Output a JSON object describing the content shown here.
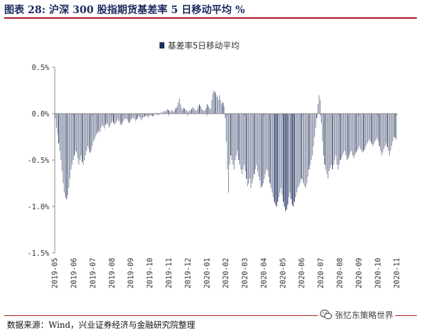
{
  "title": "图表 28:  沪深 300 股指期货基差率 5 日移动平均  %",
  "source": "数据来源：Wind，兴业证券经济与金融研究院整理",
  "watermark": "张忆东策略世界",
  "colors": {
    "bar": "#7d869c",
    "bar_dark": "#1c2d5e",
    "title": "#1a2a5e",
    "rule": "#a8141c"
  },
  "chart_data": {
    "type": "bar",
    "legend_position": "top-center",
    "grid": false,
    "ylim": [
      -1.5,
      0.5
    ],
    "yticks": [
      0.5,
      0.0,
      -0.5,
      -1.0,
      -1.5
    ],
    "ytick_labels": [
      "0.5%",
      "0.0%",
      "-0.5%",
      "-1.0%",
      "-1.5%"
    ],
    "xtick_labels": [
      "2019-05",
      "2019-06",
      "2019-07",
      "2019-08",
      "2019-09",
      "2019-10",
      "2019-11",
      "2019-12",
      "2020-01",
      "2020-02",
      "2020-03",
      "2020-04",
      "2020-05",
      "2020-06",
      "2020-07",
      "2020-08",
      "2020-09",
      "2020-10",
      "2020-11"
    ],
    "series": [
      {
        "name": "基差率5日移动平均",
        "color": "#7d869c",
        "values": [
          -0.05,
          -0.15,
          -0.22,
          -0.32,
          -0.4,
          -0.5,
          -0.62,
          -0.75,
          -0.85,
          -0.9,
          -0.92,
          -0.88,
          -0.8,
          -0.7,
          -0.6,
          -0.55,
          -0.5,
          -0.45,
          -0.4,
          -0.42,
          -0.48,
          -0.55,
          -0.5,
          -0.45,
          -0.52,
          -0.55,
          -0.5,
          -0.45,
          -0.4,
          -0.35,
          -0.38,
          -0.42,
          -0.4,
          -0.35,
          -0.3,
          -0.28,
          -0.25,
          -0.22,
          -0.2,
          -0.18,
          -0.2,
          -0.15,
          -0.12,
          -0.14,
          -0.16,
          -0.12,
          -0.1,
          -0.12,
          -0.15,
          -0.13,
          -0.1,
          -0.08,
          -0.1,
          -0.12,
          -0.1,
          -0.08,
          -0.06,
          -0.08,
          -0.1,
          -0.12,
          -0.1,
          -0.08,
          -0.06,
          -0.05,
          -0.06,
          -0.08,
          -0.1,
          -0.08,
          -0.06,
          -0.05,
          -0.04,
          -0.06,
          -0.08,
          -0.06,
          -0.04,
          -0.03,
          -0.05,
          -0.07,
          -0.05,
          -0.04,
          -0.03,
          -0.02,
          -0.03,
          -0.04,
          -0.02,
          -0.01,
          -0.02,
          -0.03,
          -0.02,
          -0.01,
          0.01,
          -0.01,
          -0.02,
          -0.01,
          0.0,
          0.02,
          0.01,
          0.03,
          0.02,
          0.03,
          0.05,
          0.04,
          0.03,
          0.02,
          0.04,
          0.03,
          0.02,
          0.04,
          0.06,
          0.08,
          0.12,
          0.16,
          0.1,
          0.06,
          0.04,
          0.06,
          0.05,
          0.04,
          0.03,
          0.02,
          0.04,
          0.03,
          0.05,
          0.07,
          0.06,
          0.04,
          0.03,
          0.05,
          0.08,
          0.1,
          0.08,
          0.05,
          0.04,
          0.03,
          0.04,
          0.06,
          0.1,
          0.08,
          0.06,
          0.05,
          0.15,
          0.22,
          0.25,
          0.23,
          0.2,
          0.18,
          0.15,
          0.2,
          0.14,
          0.1,
          0.12,
          0.08,
          -0.05,
          -0.3,
          -0.6,
          -0.85,
          -0.55,
          -0.45,
          -0.5,
          -0.55,
          -0.6,
          -0.5,
          -0.45,
          -0.4,
          -0.5,
          -0.55,
          -0.6,
          -0.65,
          -0.6,
          -0.55,
          -0.62,
          -0.7,
          -0.78,
          -0.75,
          -0.7,
          -0.8,
          -0.75,
          -0.7,
          -0.65,
          -0.6,
          -0.55,
          -0.62,
          -0.68,
          -0.72,
          -0.8,
          -0.78,
          -0.75,
          -0.7,
          -0.65,
          -0.6,
          -0.62,
          -0.68,
          -0.75,
          -0.8,
          -0.85,
          -0.9,
          -0.95,
          -0.98,
          -1.0,
          -0.95,
          -0.9,
          -0.85,
          -0.8,
          -0.88,
          -0.95,
          -1.0,
          -1.05,
          -1.03,
          -0.98,
          -0.9,
          -0.85,
          -0.92,
          -0.98,
          -1.0,
          -0.95,
          -0.9,
          -0.85,
          -0.8,
          -0.78,
          -0.75,
          -0.7,
          -0.72,
          -0.75,
          -0.78,
          -0.8,
          -0.75,
          -0.68,
          -0.6,
          -0.55,
          -0.5,
          -0.45,
          -0.35,
          -0.25,
          -0.15,
          -0.05,
          0.1,
          0.2,
          0.15,
          -0.1,
          -0.3,
          -0.45,
          -0.55,
          -0.6,
          -0.65,
          -0.7,
          -0.62,
          -0.58,
          -0.55,
          -0.6,
          -0.55,
          -0.5,
          -0.45,
          -0.55,
          -0.6,
          -0.55,
          -0.5,
          -0.48,
          -0.45,
          -0.42,
          -0.4,
          -0.45,
          -0.5,
          -0.48,
          -0.45,
          -0.42,
          -0.4,
          -0.45,
          -0.48,
          -0.45,
          -0.42,
          -0.4,
          -0.38,
          -0.35,
          -0.38,
          -0.4,
          -0.42,
          -0.4,
          -0.38,
          -0.35,
          -0.32,
          -0.3,
          -0.28,
          -0.3,
          -0.32,
          -0.35,
          -0.33,
          -0.3,
          -0.28,
          -0.26,
          -0.3,
          -0.35,
          -0.4,
          -0.45,
          -0.42,
          -0.38,
          -0.35,
          -0.32,
          -0.36,
          -0.4,
          -0.45,
          -0.4,
          -0.35,
          -0.3,
          -0.25,
          -0.26,
          -0.28
        ]
      }
    ]
  }
}
